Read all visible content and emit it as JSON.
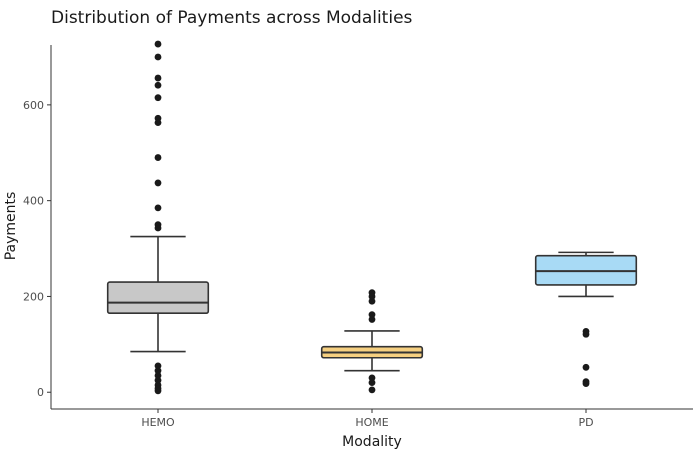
{
  "chart_data": {
    "type": "boxplot",
    "title": "Distribution of Payments across Modalities",
    "xlabel": "Modality",
    "ylabel": "Payments",
    "categories": [
      "HEMO",
      "HOME",
      "PD"
    ],
    "ylim": [
      -35,
      725
    ],
    "yticks": [
      0,
      200,
      400,
      600
    ],
    "ytick_labels": [
      "0",
      "200",
      "400",
      "600"
    ],
    "grid": false,
    "legend": "none",
    "boxes": [
      {
        "category": "HEMO",
        "color": "#c8c8c8",
        "whisker_low": 85,
        "q1": 165,
        "median": 187,
        "q3": 230,
        "whisker_high": 325,
        "outliers": [
          727,
          700,
          656,
          641,
          615,
          572,
          563,
          490,
          437,
          385,
          350,
          343,
          55,
          45,
          35,
          25,
          15,
          8,
          3
        ]
      },
      {
        "category": "HOME",
        "color": "#f5cf80",
        "whisker_low": 45,
        "q1": 72,
        "median": 83,
        "q3": 95,
        "whisker_high": 128,
        "outliers": [
          208,
          200,
          190,
          162,
          152,
          30,
          20,
          5
        ]
      },
      {
        "category": "PD",
        "color": "#a8daf5",
        "whisker_low": 200,
        "q1": 224,
        "median": 253,
        "q3": 285,
        "whisker_high": 292,
        "outliers": [
          127,
          121,
          52,
          22,
          18
        ]
      }
    ]
  }
}
